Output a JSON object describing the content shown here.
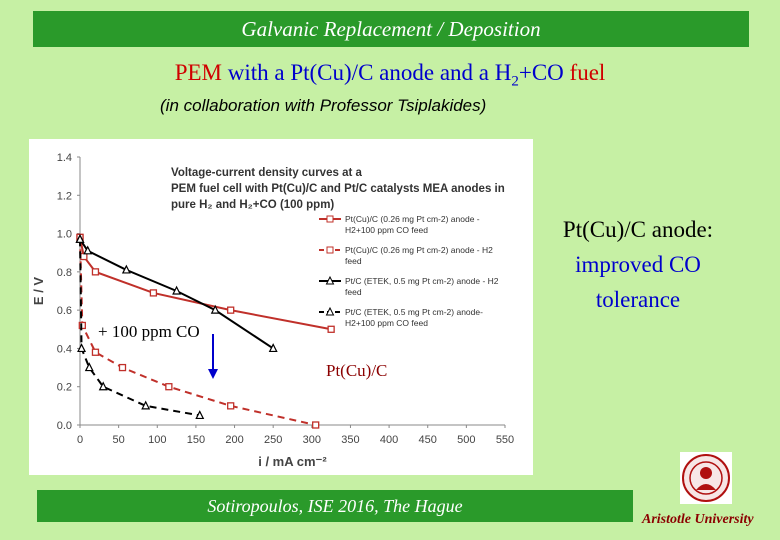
{
  "header": {
    "title": "Galvanic Replacement / Deposition"
  },
  "subtitle": {
    "part1": "PEM with a Pt(Cu)/C anode and a H",
    "sub": "2",
    "part2": "+CO fuel"
  },
  "collaboration": "(in collaboration with Professor Tsiplakides)",
  "side_note": {
    "line1": "Pt(Cu)/C anode:",
    "line2": "improved CO",
    "line3": "tolerance"
  },
  "annotations": {
    "co_label": "+ 100 ppm CO",
    "ptcu_label": "Pt(Cu)/C"
  },
  "footer": {
    "citation": "Sotiropoulos, ISE 2016, The Hague",
    "university": "Aristotle University"
  },
  "colors": {
    "red": "#c0302a",
    "black": "#000000",
    "banner": "#2a9a2a",
    "background": "#c6f0a4"
  },
  "chart_data": {
    "type": "line",
    "title_lines": [
      "Voltage-current density curves at a",
      "PEM fuel cell with Pt(Cu)/C and Pt/C catalysts MEA anodes in",
      "pure H₂ and H₂+CO (100 ppm)"
    ],
    "xlabel": "i / mA cm⁻²",
    "ylabel": "E / V",
    "xlim": [
      0,
      550
    ],
    "ylim": [
      0,
      1.4
    ],
    "x_ticks": [
      0,
      50,
      100,
      150,
      200,
      250,
      300,
      350,
      400,
      450,
      500,
      550
    ],
    "y_ticks": [
      "0.0",
      "0.2",
      "0.4",
      "0.6",
      "0.8",
      "1.0",
      "1.2",
      "1.4"
    ],
    "grid": false,
    "legend_position": "right",
    "series": [
      {
        "name": "Pt(Cu)/C (0.26 mg Pt cm-2) anode - H2+100 ppm CO feed",
        "legend_lines": [
          "Pt(Cu)/C (0.26 mg Pt cm-2) anode -",
          "H2+100 ppm CO feed"
        ],
        "color": "#c0302a",
        "dash": "none",
        "marker": "square",
        "x": [
          0,
          5,
          20,
          95,
          195,
          325
        ],
        "y": [
          0.98,
          0.88,
          0.8,
          0.69,
          0.6,
          0.5
        ]
      },
      {
        "name": "Pt(Cu)/C (0.26 mg Pt cm-2) anode - H2 feed",
        "legend_lines": [
          "Pt(Cu)/C (0.26 mg Pt cm-2) anode - H2",
          "feed"
        ],
        "color": "#c0302a",
        "dash": "dashed",
        "marker": "square",
        "x": [
          0,
          3,
          20,
          55,
          115,
          195,
          305
        ],
        "y": [
          0.98,
          0.52,
          0.38,
          0.3,
          0.2,
          0.1,
          0.0
        ]
      },
      {
        "name": "Pt/C (ETEK, 0.5 mg Pt cm-2) anode - H2 feed",
        "legend_lines": [
          "Pt/C (ETEK, 0.5 mg Pt cm-2) anode - H2",
          "feed"
        ],
        "color": "#000000",
        "dash": "none",
        "marker": "triangle",
        "x": [
          0,
          10,
          60,
          125,
          175,
          250
        ],
        "y": [
          0.97,
          0.91,
          0.81,
          0.7,
          0.6,
          0.4
        ]
      },
      {
        "name": "Pt/C (ETEK, 0.5 mg Pt cm-2) anode- H2+100 ppm CO feed",
        "legend_lines": [
          "Pt/C (ETEK, 0.5 mg Pt cm-2) anode-",
          "H2+100 ppm CO feed"
        ],
        "color": "#000000",
        "dash": "dashed",
        "marker": "triangle",
        "x": [
          0,
          2,
          12,
          30,
          85,
          155
        ],
        "y": [
          0.97,
          0.4,
          0.3,
          0.2,
          0.1,
          0.05
        ]
      }
    ]
  }
}
